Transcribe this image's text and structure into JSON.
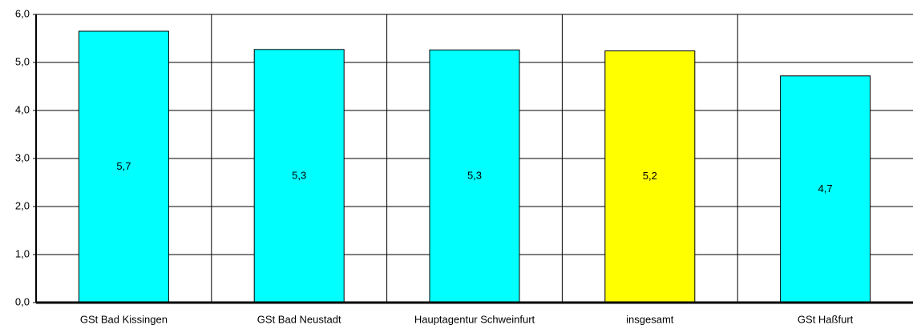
{
  "chart_data": {
    "type": "bar",
    "categories": [
      "GSt Bad Kissingen",
      "GSt Bad Neustadt",
      "Hauptagentur Schweinfurt",
      "insgesamt",
      "GSt Haßfurt"
    ],
    "values": [
      5.65,
      5.27,
      5.26,
      5.24,
      4.72
    ],
    "value_labels": [
      "5,7",
      "5,3",
      "5,3",
      "5,2",
      "4,7"
    ],
    "colors": [
      "#00ffff",
      "#00ffff",
      "#00ffff",
      "#ffff00",
      "#00ffff"
    ],
    "ylim": [
      0,
      6
    ],
    "yticks": [
      {
        "value": 0,
        "label": "0,0"
      },
      {
        "value": 1,
        "label": "1,0"
      },
      {
        "value": 2,
        "label": "2,0"
      },
      {
        "value": 3,
        "label": "3,0"
      },
      {
        "value": 4,
        "label": "4,0"
      },
      {
        "value": 5,
        "label": "5,0"
      },
      {
        "value": 6,
        "label": "6,0"
      }
    ],
    "grid": true
  }
}
